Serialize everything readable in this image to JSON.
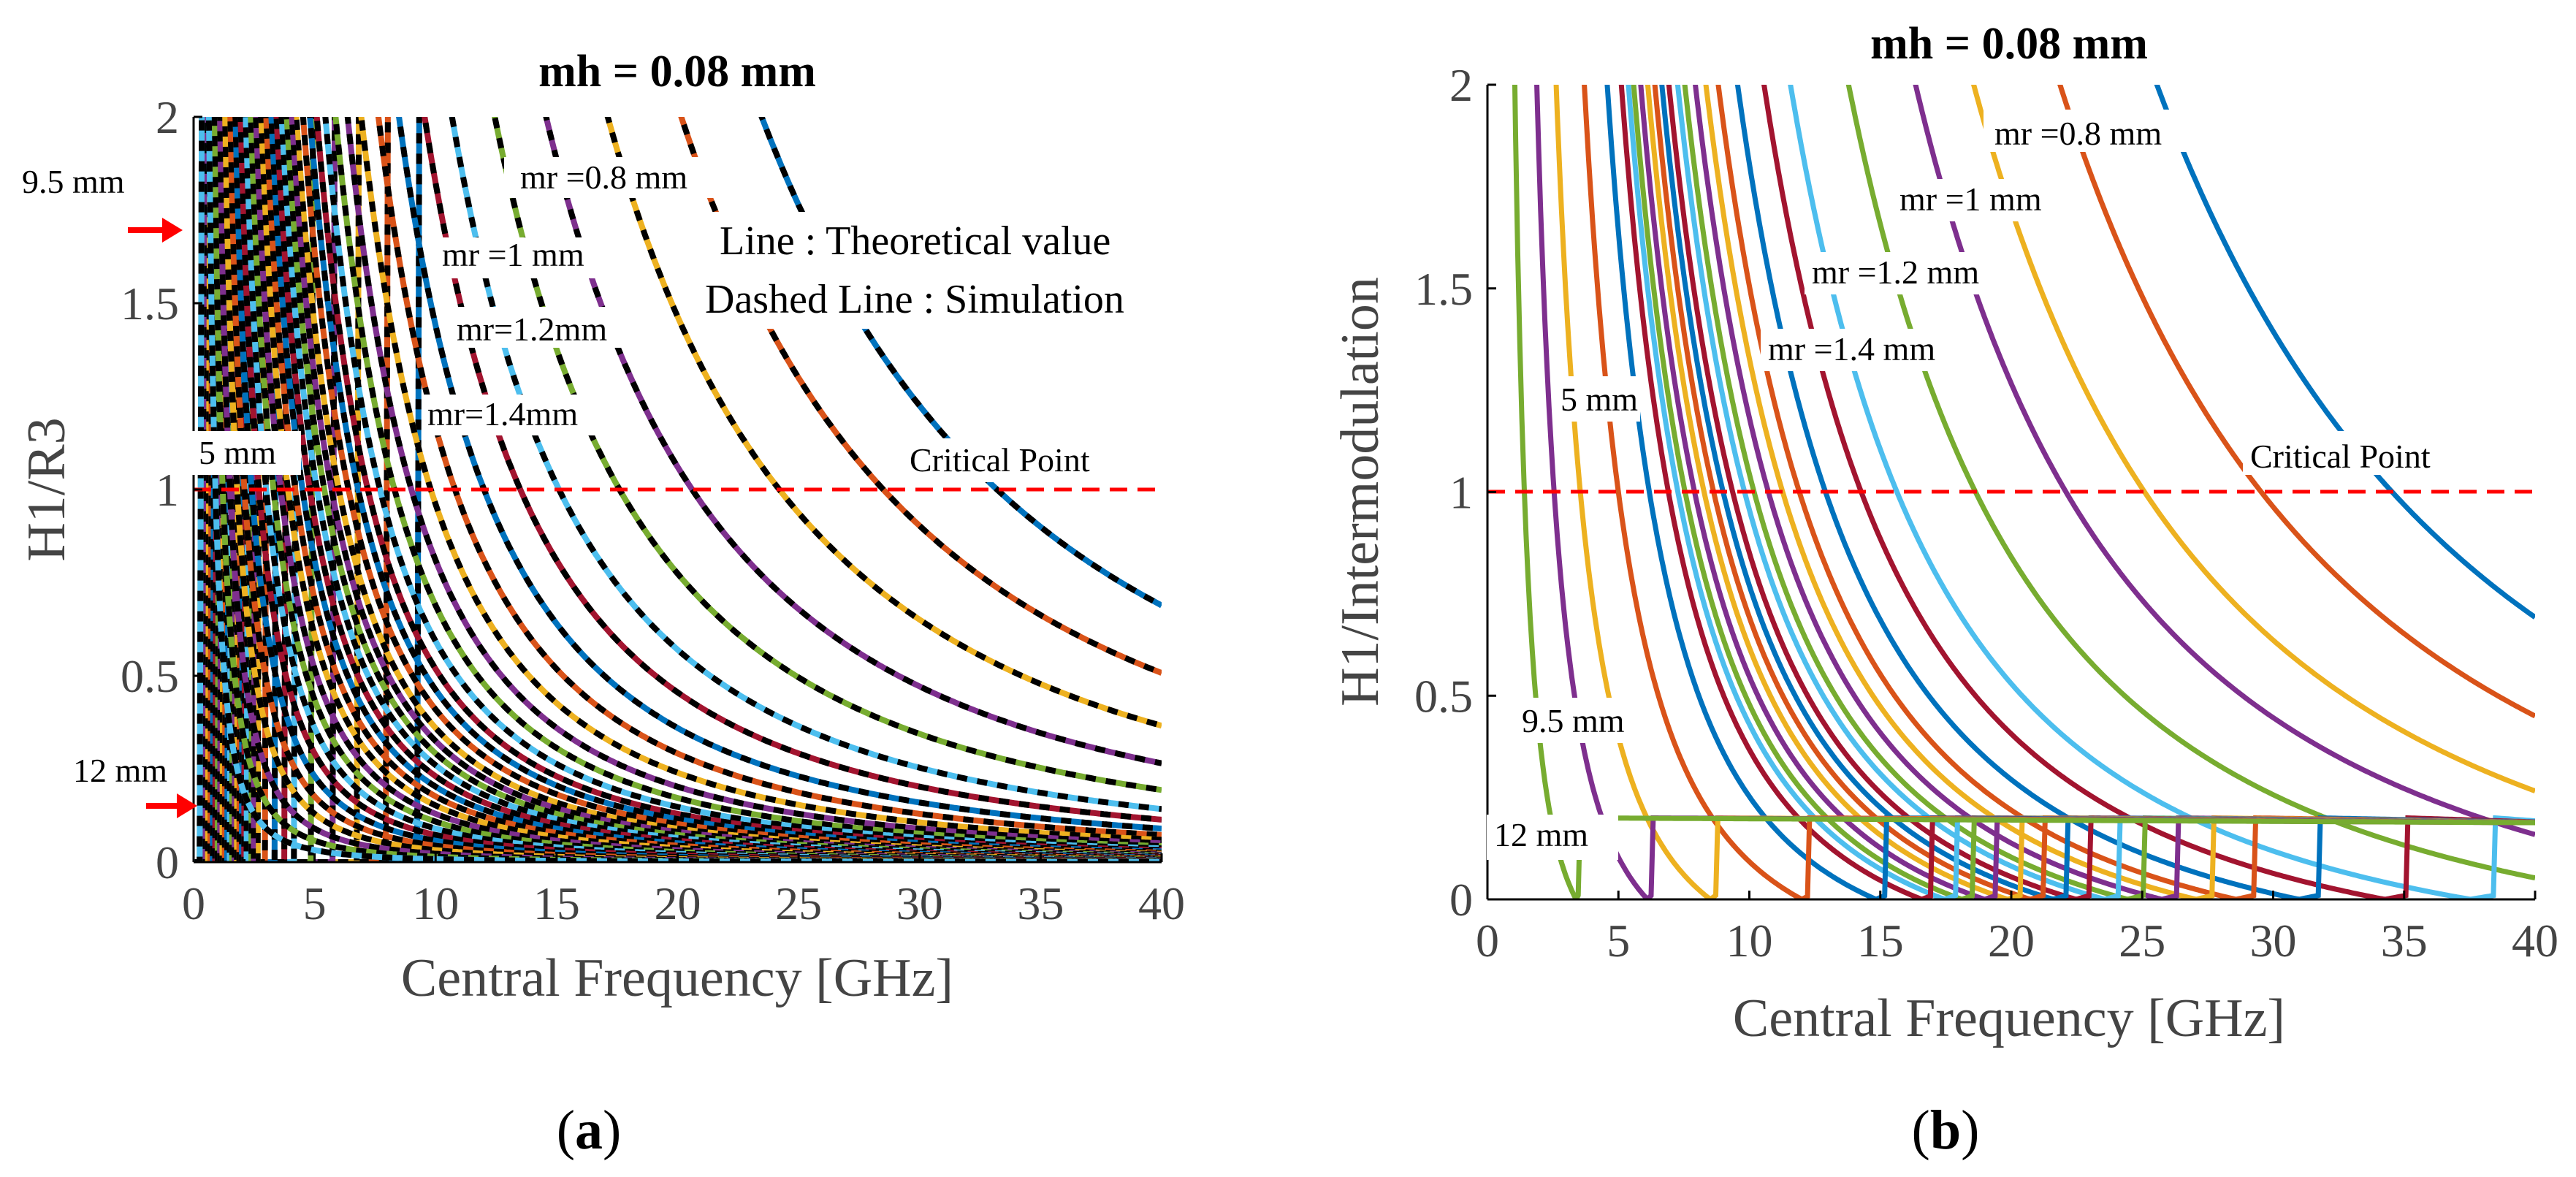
{
  "figure": {
    "panel_a_caption": "a",
    "panel_b_caption": "b"
  },
  "colors": {
    "palette": [
      "#0072BD",
      "#D95319",
      "#EDB120",
      "#7E2F8E",
      "#77AC30",
      "#4DBEEE",
      "#A2142F"
    ],
    "critical": "#ff0000",
    "simulation_dash": "#000000",
    "axis": "#000000",
    "tick_label": "#444444"
  },
  "chart_data": [
    {
      "id": "a",
      "type": "line",
      "title": "mh = 0.08 mm",
      "xlabel": "Central Frequency [GHz]",
      "ylabel": "H1/R3",
      "xlim": [
        0,
        40
      ],
      "ylim": [
        0,
        2
      ],
      "xticks": [
        0,
        5,
        10,
        15,
        20,
        25,
        30,
        35,
        40
      ],
      "yticks": [
        0,
        0.5,
        1,
        1.5,
        2
      ],
      "ytick_labels": [
        "0",
        "0.5",
        "1",
        "1.5",
        "2"
      ],
      "grid": false,
      "critical_line": {
        "y": 1,
        "label": "Critical Point"
      },
      "legend_text": [
        "Line : Theoretical value",
        "Dashed Line : Simulation"
      ],
      "annotations": {
        "mr_labels": [
          "mr =0.8 mm",
          "mr =1 mm",
          "mr=1.2mm",
          "mr=1.4mm"
        ],
        "size_labels": [
          "9.5 mm",
          "5 mm",
          "12 mm"
        ]
      },
      "model": "y = (f1 / f)^2, zero below f = 0.28*f1",
      "series_f1": [
        33.2,
        28.5,
        24.2,
        20.6,
        17.6,
        15.1,
        13.5,
        12.0,
        10.8,
        9.8,
        9.0,
        8.3,
        7.7,
        7.2,
        6.8,
        6.4,
        6.0,
        5.7,
        5.4,
        5.1,
        4.8,
        4.5,
        4.2,
        3.9,
        3.6,
        3.3,
        3.0,
        2.7,
        2.4,
        2.1,
        1.8,
        1.5,
        1.2,
        0.9
      ]
    },
    {
      "id": "b",
      "type": "line",
      "title": "mh = 0.08 mm",
      "xlabel": "Central Frequency [GHz]",
      "ylabel": "H1/Intermodulation",
      "xlim": [
        0,
        40
      ],
      "ylim": [
        0,
        2
      ],
      "xticks": [
        0,
        5,
        10,
        15,
        20,
        25,
        30,
        35,
        40
      ],
      "yticks": [
        0,
        0.5,
        1,
        1.5,
        2
      ],
      "ytick_labels": [
        "0",
        "0.5",
        "1",
        "1.5",
        "2"
      ],
      "grid": false,
      "critical_line": {
        "y": 1,
        "label": "Critical Point"
      },
      "annotations": {
        "mr_labels": [
          "mr =0.8 mm",
          "mr =1 mm",
          "mr =1.2 mm",
          "mr =1.4 mm"
        ],
        "size_labels": [
          "5 mm",
          "9.5 mm",
          "12 mm"
        ]
      },
      "model": "y = |(f0/f)^2 - 0.21|, plateau 0.2 beyond f0 / sqrt(0.2)",
      "series_f0": [
        38.0,
        32.5,
        27.6,
        24.3,
        20.5,
        17.2,
        15.7,
        14.2,
        13.1,
        12.4,
        11.8,
        11.2,
        10.8,
        10.3,
        9.9,
        9.5,
        9.1,
        8.7,
        8.3,
        8.0,
        7.6,
        6.8,
        5.5,
        3.9,
        2.8,
        1.55
      ]
    }
  ]
}
